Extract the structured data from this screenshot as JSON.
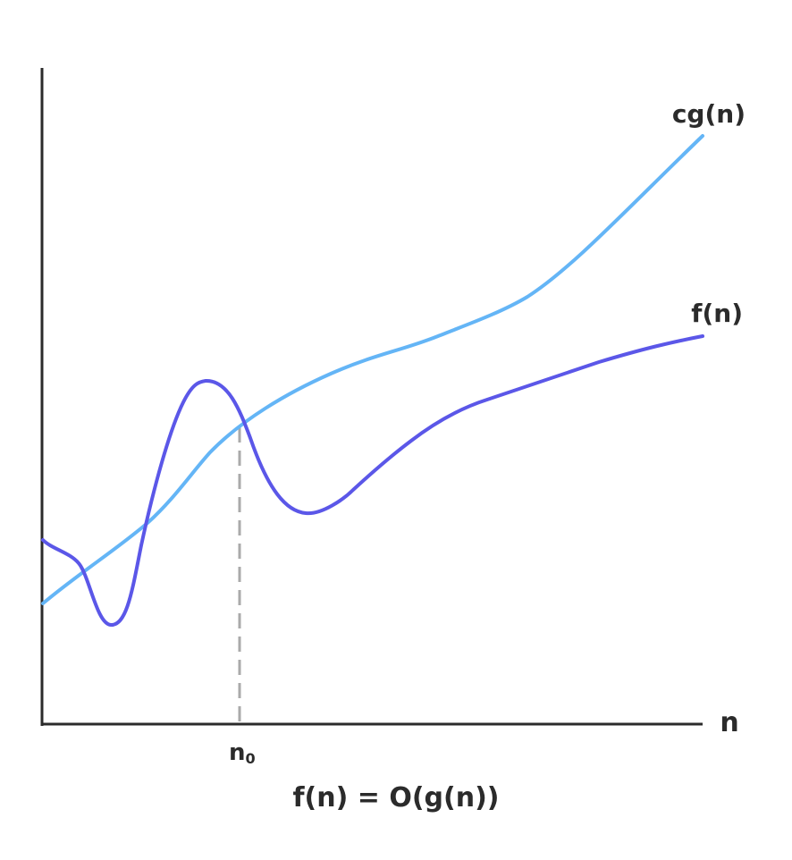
{
  "labels": {
    "upper_curve": "cg(n)",
    "lower_curve": "f(n)",
    "x_axis": "n",
    "threshold": "n",
    "threshold_subscript": "0",
    "formula": "f(n) = O(g(n))"
  },
  "colors": {
    "upper_curve": "#64b5f6",
    "lower_curve": "#5b57e8",
    "axes": "#2b2b2b",
    "threshold_line": "#aaaaaa",
    "text": "#2b2b2b"
  }
}
